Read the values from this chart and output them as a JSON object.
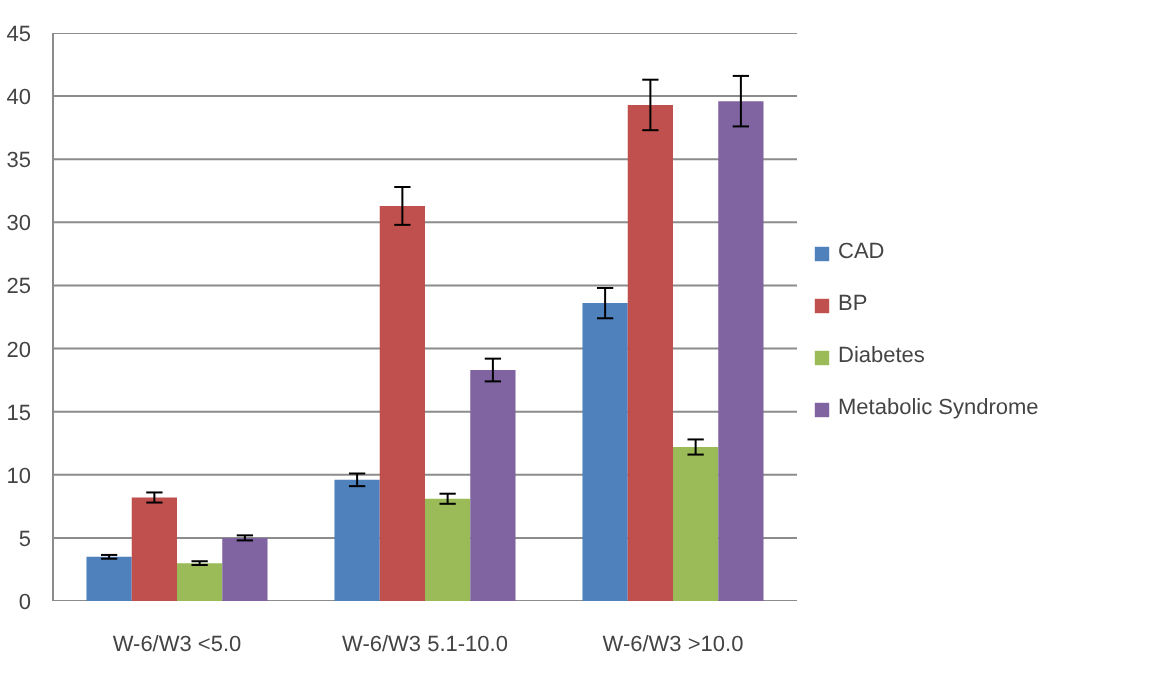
{
  "chart_data": {
    "type": "bar",
    "categories": [
      "W-6/W3 <5.0",
      "W-6/W3 5.1-10.0",
      "W-6/W3 >10.0"
    ],
    "series": [
      {
        "name": "CAD",
        "color": "#4f81bd",
        "values": [
          3.5,
          9.6,
          23.6
        ],
        "errors": [
          0.15,
          0.5,
          1.2
        ]
      },
      {
        "name": "BP",
        "color": "#c0504d",
        "values": [
          8.2,
          31.3,
          39.3
        ],
        "errors": [
          0.4,
          1.5,
          2.0
        ]
      },
      {
        "name": "Diabetes",
        "color": "#9bbb59",
        "values": [
          3.0,
          8.1,
          12.2
        ],
        "errors": [
          0.15,
          0.4,
          0.6
        ]
      },
      {
        "name": "Metabolic Syndrome",
        "color": "#8064a2",
        "values": [
          5.0,
          18.3,
          39.6
        ],
        "errors": [
          0.2,
          0.9,
          2.0
        ]
      }
    ],
    "ylim": [
      0,
      45
    ],
    "yticks": [
      0,
      5,
      10,
      15,
      20,
      25,
      30,
      35,
      40,
      45
    ],
    "grid": "y",
    "legend": "right"
  }
}
